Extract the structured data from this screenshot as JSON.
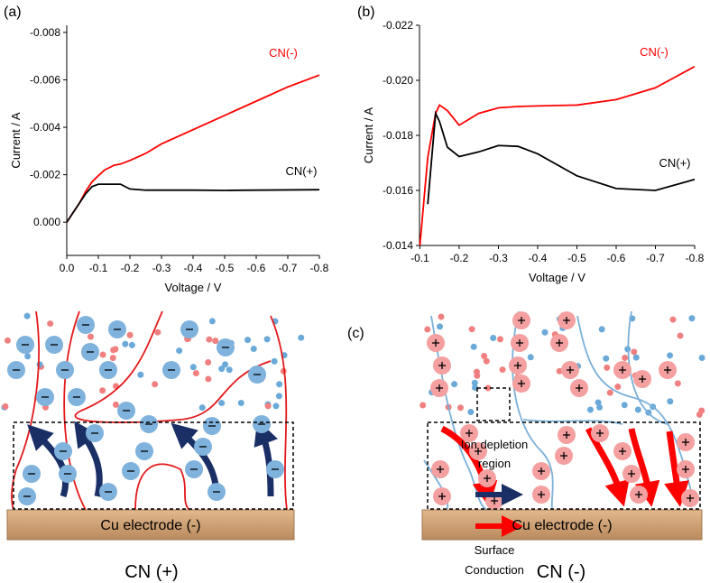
{
  "chart_data": [
    {
      "type": "line",
      "panel_label": "(a)",
      "x_label": "Voltage / V",
      "y_label": "Current / A",
      "xlim": [
        0,
        -0.8
      ],
      "ylim": [
        0.0014,
        -0.0083
      ],
      "xticks": [
        {
          "value": 0,
          "label": "0.0"
        },
        -0.1,
        -0.2,
        -0.3,
        -0.4,
        -0.5,
        -0.6,
        -0.7,
        -0.8
      ],
      "yticks": [
        {
          "value": 0,
          "label": "0.000"
        },
        -0.002,
        -0.004,
        -0.006,
        -0.008
      ],
      "x": [
        0,
        -0.02,
        -0.04,
        -0.06,
        -0.08,
        -0.1,
        -0.12,
        -0.15,
        -0.17,
        -0.2,
        -0.25,
        -0.3,
        -0.4,
        -0.5,
        -0.6,
        -0.7,
        -0.8
      ],
      "series": [
        {
          "name": "CN(-)",
          "color": "#ff0000",
          "values": [
            0,
            -0.0004,
            -0.0008,
            -0.0013,
            -0.0017,
            -0.00196,
            -0.0022,
            -0.0024,
            -0.00245,
            -0.0026,
            -0.0029,
            -0.0033,
            -0.0039,
            -0.0045,
            -0.0051,
            -0.0057,
            -0.0062
          ]
        },
        {
          "name": "CN(+)",
          "color": "#000000",
          "values": [
            0,
            -0.0004,
            -0.0008,
            -0.0012,
            -0.0015,
            -0.0016,
            -0.0016,
            -0.0016,
            -0.0016,
            -0.0014,
            -0.00135,
            -0.00135,
            -0.00135,
            -0.00134,
            -0.00135,
            -0.00136,
            -0.00137
          ]
        }
      ]
    },
    {
      "type": "line",
      "panel_label": "(b)",
      "x_label": "Voltage / V",
      "y_label": "Current / A",
      "xlim": [
        -0.099,
        -0.8
      ],
      "ylim": [
        -0.014,
        -0.022
      ],
      "xticks": [
        -0.1,
        -0.2,
        -0.3,
        -0.4,
        -0.5,
        -0.6,
        -0.7,
        -0.8
      ],
      "yticks": [
        -0.014,
        -0.016,
        -0.018,
        {
          "value": -0.02,
          "label": "-0.020"
        },
        -0.022
      ],
      "x": [
        -0.1,
        -0.12,
        -0.14,
        -0.15,
        -0.17,
        -0.2,
        -0.25,
        -0.3,
        -0.35,
        -0.4,
        -0.5,
        -0.6,
        -0.7,
        -0.8
      ],
      "series": [
        {
          "name": "CN(-)",
          "color": "#ff0000",
          "values": [
            -0.014,
            -0.0172,
            -0.0188,
            -0.0191,
            -0.0189,
            -0.01837,
            -0.0188,
            -0.019,
            -0.01905,
            -0.01907,
            -0.0191,
            -0.0193,
            -0.01973,
            -0.0205
          ]
        },
        {
          "name": "CN(+)",
          "color": "#000000",
          "values": [
            null,
            -0.0155,
            -0.0188,
            -0.0185,
            -0.01757,
            -0.01723,
            -0.0174,
            -0.01763,
            -0.0176,
            -0.01733,
            -0.01653,
            -0.01607,
            -0.016,
            -0.0164
          ]
        }
      ]
    }
  ],
  "diagram": {
    "panel_label": "(c)",
    "left_electrode": "Cu electrode (-)",
    "right_electrode": "Cu electrode (-)",
    "left_caption": "CN (+)",
    "right_caption": "CN (-)",
    "legend": [
      {
        "lines": [
          "Ion depletion",
          "region"
        ]
      },
      {
        "lines": [
          "Surface",
          "Conduction"
        ]
      }
    ]
  }
}
